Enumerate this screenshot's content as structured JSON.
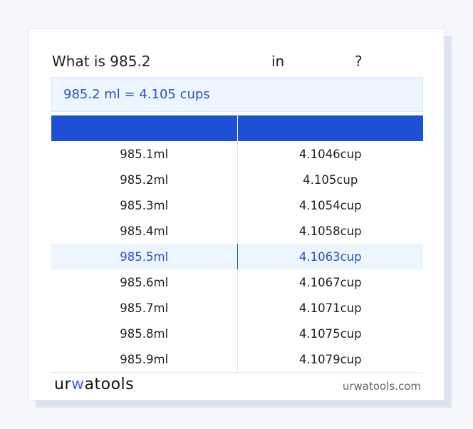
{
  "question": {
    "prefix": "What is 985.2",
    "middle": "in",
    "suffix": "?"
  },
  "result": "985.2 ml = 4.105 cups",
  "table": {
    "headers": [
      "",
      ""
    ],
    "rows": [
      [
        "985.1ml",
        "4.1046cup"
      ],
      [
        "985.2ml",
        "4.105cup"
      ],
      [
        "985.3ml",
        "4.1054cup"
      ],
      [
        "985.4ml",
        "4.1058cup"
      ],
      [
        "985.5ml",
        "4.1063cup"
      ],
      [
        "985.6ml",
        "4.1067cup"
      ],
      [
        "985.7ml",
        "4.1071cup"
      ],
      [
        "985.8ml",
        "4.1075cup"
      ],
      [
        "985.9ml",
        "4.1079cup"
      ]
    ],
    "highlighted_row": 4
  },
  "footer": {
    "logo": "urwatools",
    "logo_parts": [
      "ur",
      "w",
      "atools"
    ],
    "site": "urwatools.com"
  },
  "colors": {
    "accent": "#1e50d6",
    "highlight_bg": "#edf5fe",
    "highlight_text": "#2a52c9"
  }
}
